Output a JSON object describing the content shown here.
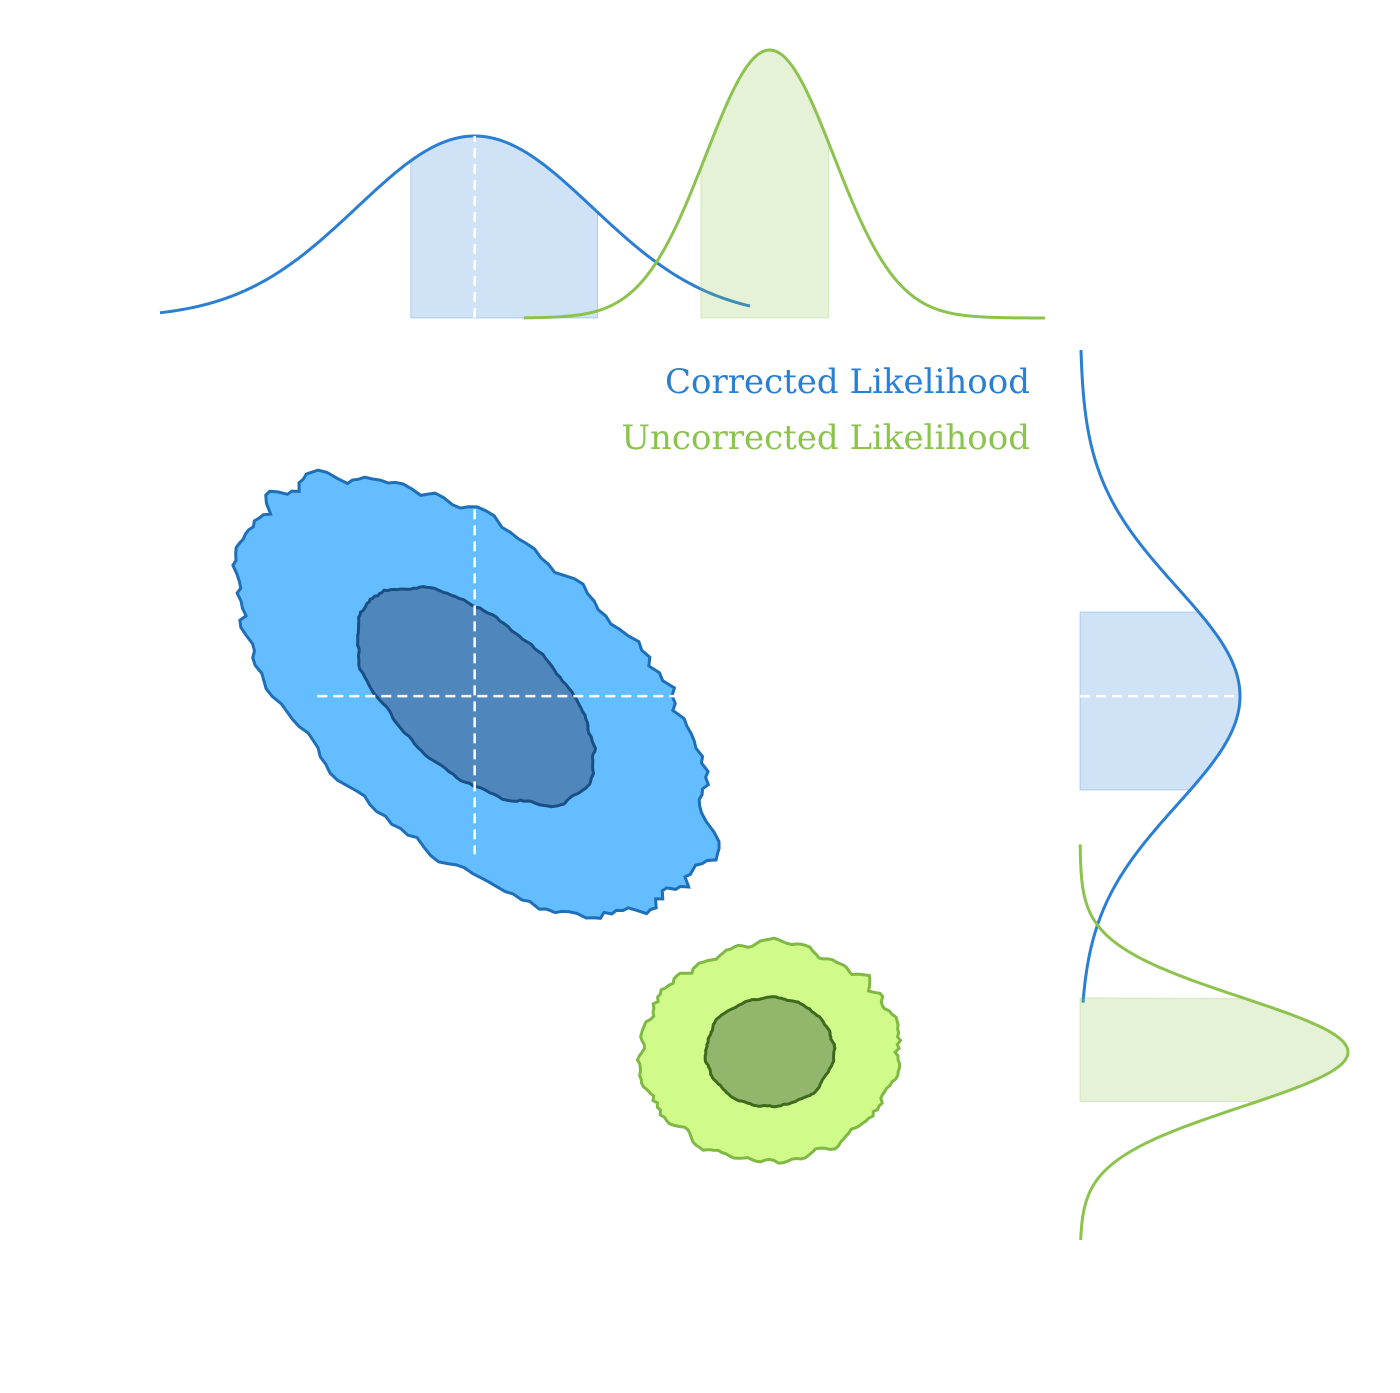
{
  "chart_data": {
    "type": "corner",
    "title": "",
    "xlabel": "",
    "ylabel": "",
    "grid": false,
    "legend_placement": "top-right",
    "x_range": [
      -4.5,
      4.5
    ],
    "y_range": [
      -4.5,
      4.5
    ],
    "series": [
      {
        "name": "Corrected Likelihood",
        "color": "#2a7fd4",
        "fill_inner": "#4f87bd",
        "fill_outer": "#63bdff",
        "mean": [
          -1.3,
          1.0
        ],
        "std": [
          1.2,
          1.1
        ],
        "correlation": -0.55,
        "contour_levels_sigma": [
          1,
          2
        ],
        "x_interval_1sigma": [
          -1.95,
          -0.05
        ],
        "y_interval_1sigma": [
          0.05,
          1.85
        ],
        "truth_marker": [
          -1.3,
          1.0
        ]
      },
      {
        "name": "Uncorrected Likelihood",
        "color": "#8cc34e",
        "fill_inner": "#93b66d",
        "fill_outer": "#d0fb8b",
        "mean": [
          1.7,
          -2.6
        ],
        "std": [
          0.65,
          0.55
        ],
        "correlation": 0.0,
        "contour_levels_sigma": [
          1,
          2
        ],
        "x_interval_1sigma": [
          1.0,
          2.3
        ],
        "y_interval_1sigma": [
          -3.1,
          -2.05
        ]
      }
    ]
  }
}
